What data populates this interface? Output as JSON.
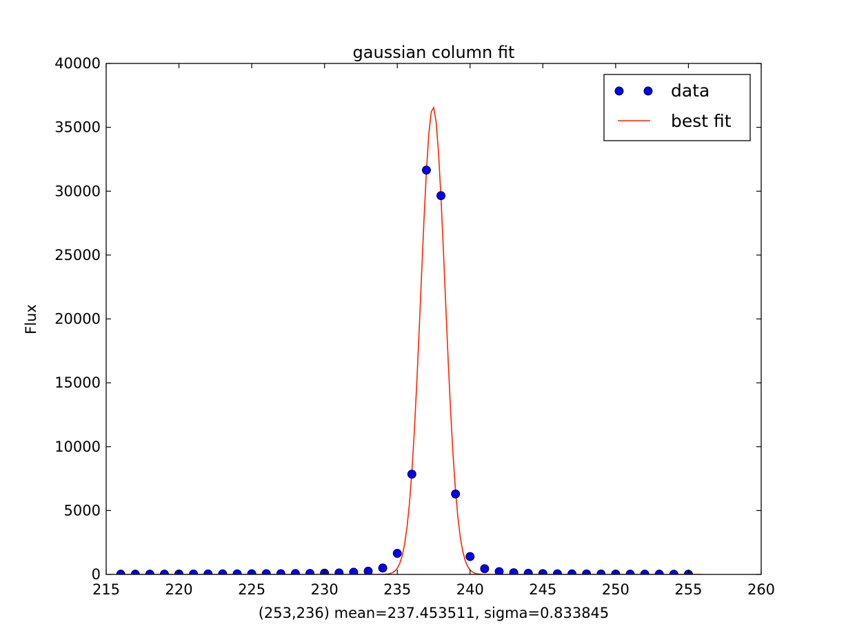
{
  "chart_data": {
    "type": "scatter",
    "title": "gaussian column fit",
    "xlabel": "(253,236) mean=237.453511, sigma=0.833845",
    "ylabel": "Flux",
    "xlim": [
      215,
      260
    ],
    "ylim": [
      0,
      40000
    ],
    "xticks": [
      215,
      220,
      225,
      230,
      235,
      240,
      245,
      250,
      255,
      260
    ],
    "yticks": [
      0,
      5000,
      10000,
      15000,
      20000,
      25000,
      30000,
      35000,
      40000
    ],
    "grid": false,
    "legend_position": "top-right",
    "series": [
      {
        "name": "data",
        "kind": "points",
        "color": "#0000ff",
        "x": [
          216,
          217,
          218,
          219,
          220,
          221,
          222,
          223,
          224,
          225,
          226,
          227,
          228,
          229,
          230,
          231,
          232,
          233,
          234,
          235,
          236,
          237,
          238,
          239,
          240,
          241,
          242,
          243,
          244,
          245,
          246,
          247,
          248,
          249,
          250,
          251,
          252,
          253,
          254,
          255
        ],
        "y": [
          20,
          20,
          25,
          25,
          30,
          30,
          35,
          40,
          45,
          50,
          55,
          60,
          70,
          80,
          95,
          120,
          170,
          250,
          500,
          1650,
          7850,
          31650,
          29650,
          6300,
          1400,
          450,
          220,
          130,
          90,
          65,
          50,
          40,
          35,
          30,
          28,
          25,
          22,
          20,
          18,
          15
        ]
      },
      {
        "name": "best fit",
        "kind": "line",
        "color": "#ff2200",
        "amplitude": 36600,
        "mean": 237.453511,
        "sigma": 0.833845,
        "x_range": [
          216,
          256
        ]
      }
    ]
  }
}
